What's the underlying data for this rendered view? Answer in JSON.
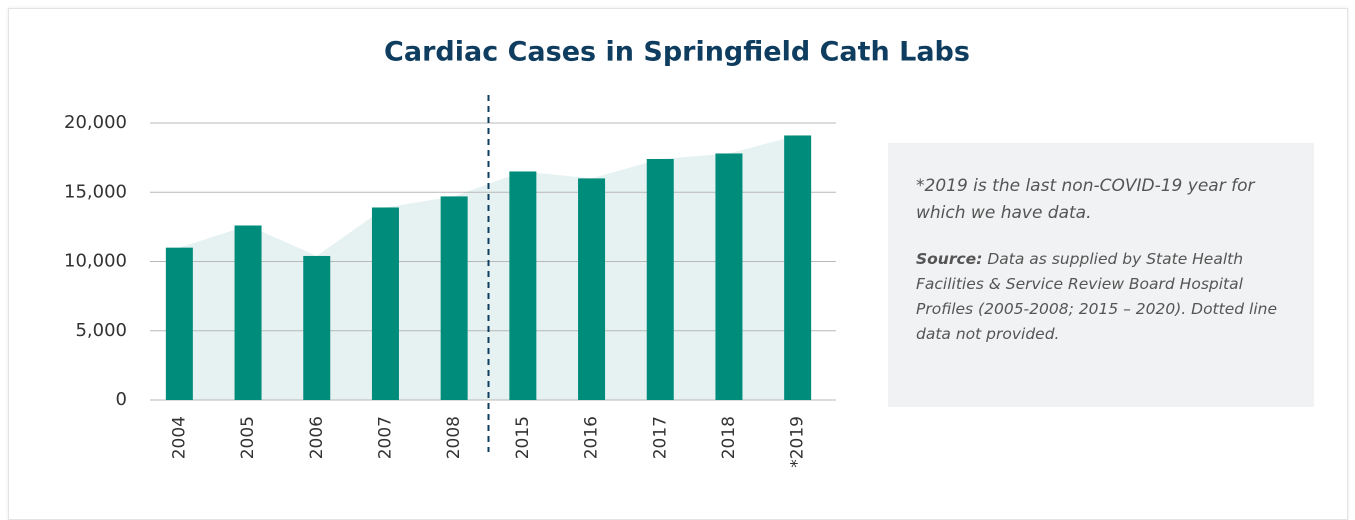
{
  "chart_data": {
    "type": "bar",
    "title": "Cardiac Cases in Springfield Cath Labs",
    "categories": [
      "2004",
      "2005",
      "2006",
      "2007",
      "2008",
      "2015",
      "2016",
      "2017",
      "2018",
      "*2019"
    ],
    "values": [
      11000,
      12600,
      10400,
      13900,
      14700,
      16500,
      16000,
      17400,
      17800,
      19100
    ],
    "color": "#008c7a",
    "area_color": "#e5f2f1",
    "ylim": [
      0,
      20000
    ],
    "yticks": [
      0,
      {
        "value": 5000,
        "label": "5,000"
      },
      {
        "value": 10000,
        "label": "10,000"
      },
      {
        "value": 15000,
        "label": "15,000"
      },
      {
        "value": 20000,
        "label": "20,000"
      }
    ],
    "grid": true,
    "note": "*2019 is the last non-COVID-19 year for which we have data.",
    "source_label": "Source:",
    "source_text": "Data as supplied by State Health Facilities & Service Review Board Hospital Profiles (2005-2008; 2015 – 2020). Dotted line data not provided."
  }
}
